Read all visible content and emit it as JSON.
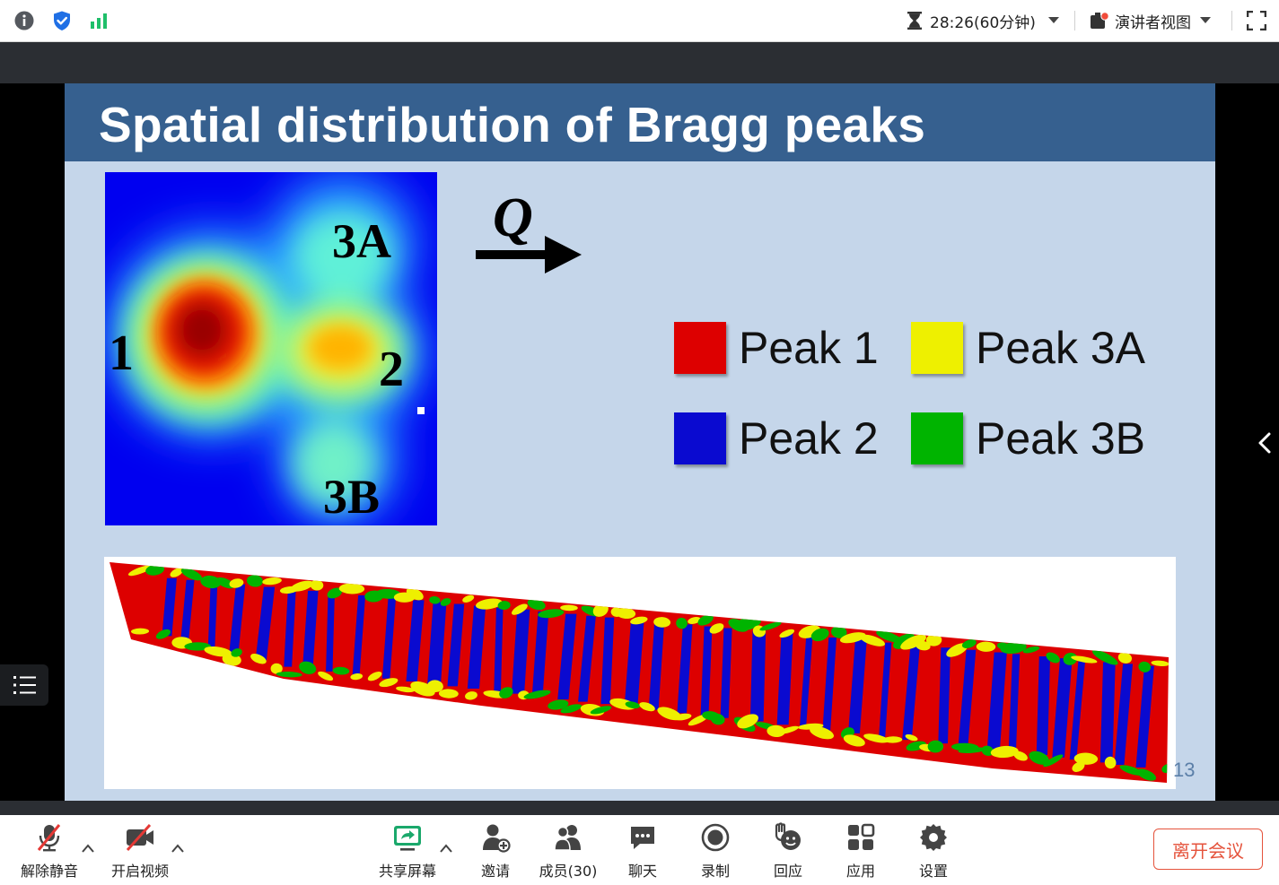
{
  "topbar": {
    "timer_text": "28:26(60分钟)",
    "speaker_view_label": "演讲者视图",
    "icons": [
      "info-icon",
      "shield-check-icon",
      "signal-bars-icon",
      "hourglass-icon",
      "chevron-down-icon",
      "speaker-view-icon",
      "fullscreen-icon"
    ]
  },
  "slide": {
    "title": "Spatial distribution of Bragg peaks",
    "heatmap_labels": {
      "peak_1": "1",
      "peak_2": "2",
      "peak_3a": "3A",
      "peak_3b": "3B"
    },
    "vector_label": "Q",
    "legend": [
      {
        "label": "Peak 1",
        "color": "#dd0000"
      },
      {
        "label": "Peak 3A",
        "color": "#eef000"
      },
      {
        "label": "Peak 2",
        "color": "#0a0ad0"
      },
      {
        "label": "Peak 3B",
        "color": "#00b400"
      }
    ],
    "page_number": "13"
  },
  "toolbar": {
    "unmute_label": "解除静音",
    "start_video_label": "开启视频",
    "share_screen_label": "共享屏幕",
    "invite_label": "邀请",
    "members_label": "成员(30)",
    "chat_label": "聊天",
    "record_label": "录制",
    "reaction_label": "回应",
    "apps_label": "应用",
    "settings_label": "设置",
    "leave_label": "离开会议"
  },
  "colors": {
    "accent_blue": "#1f6fe5",
    "signal_green": "#1fbf6a",
    "leave_red": "#e5533c",
    "slide_header": "#36608f",
    "slide_bg": "#c5d6ea"
  }
}
